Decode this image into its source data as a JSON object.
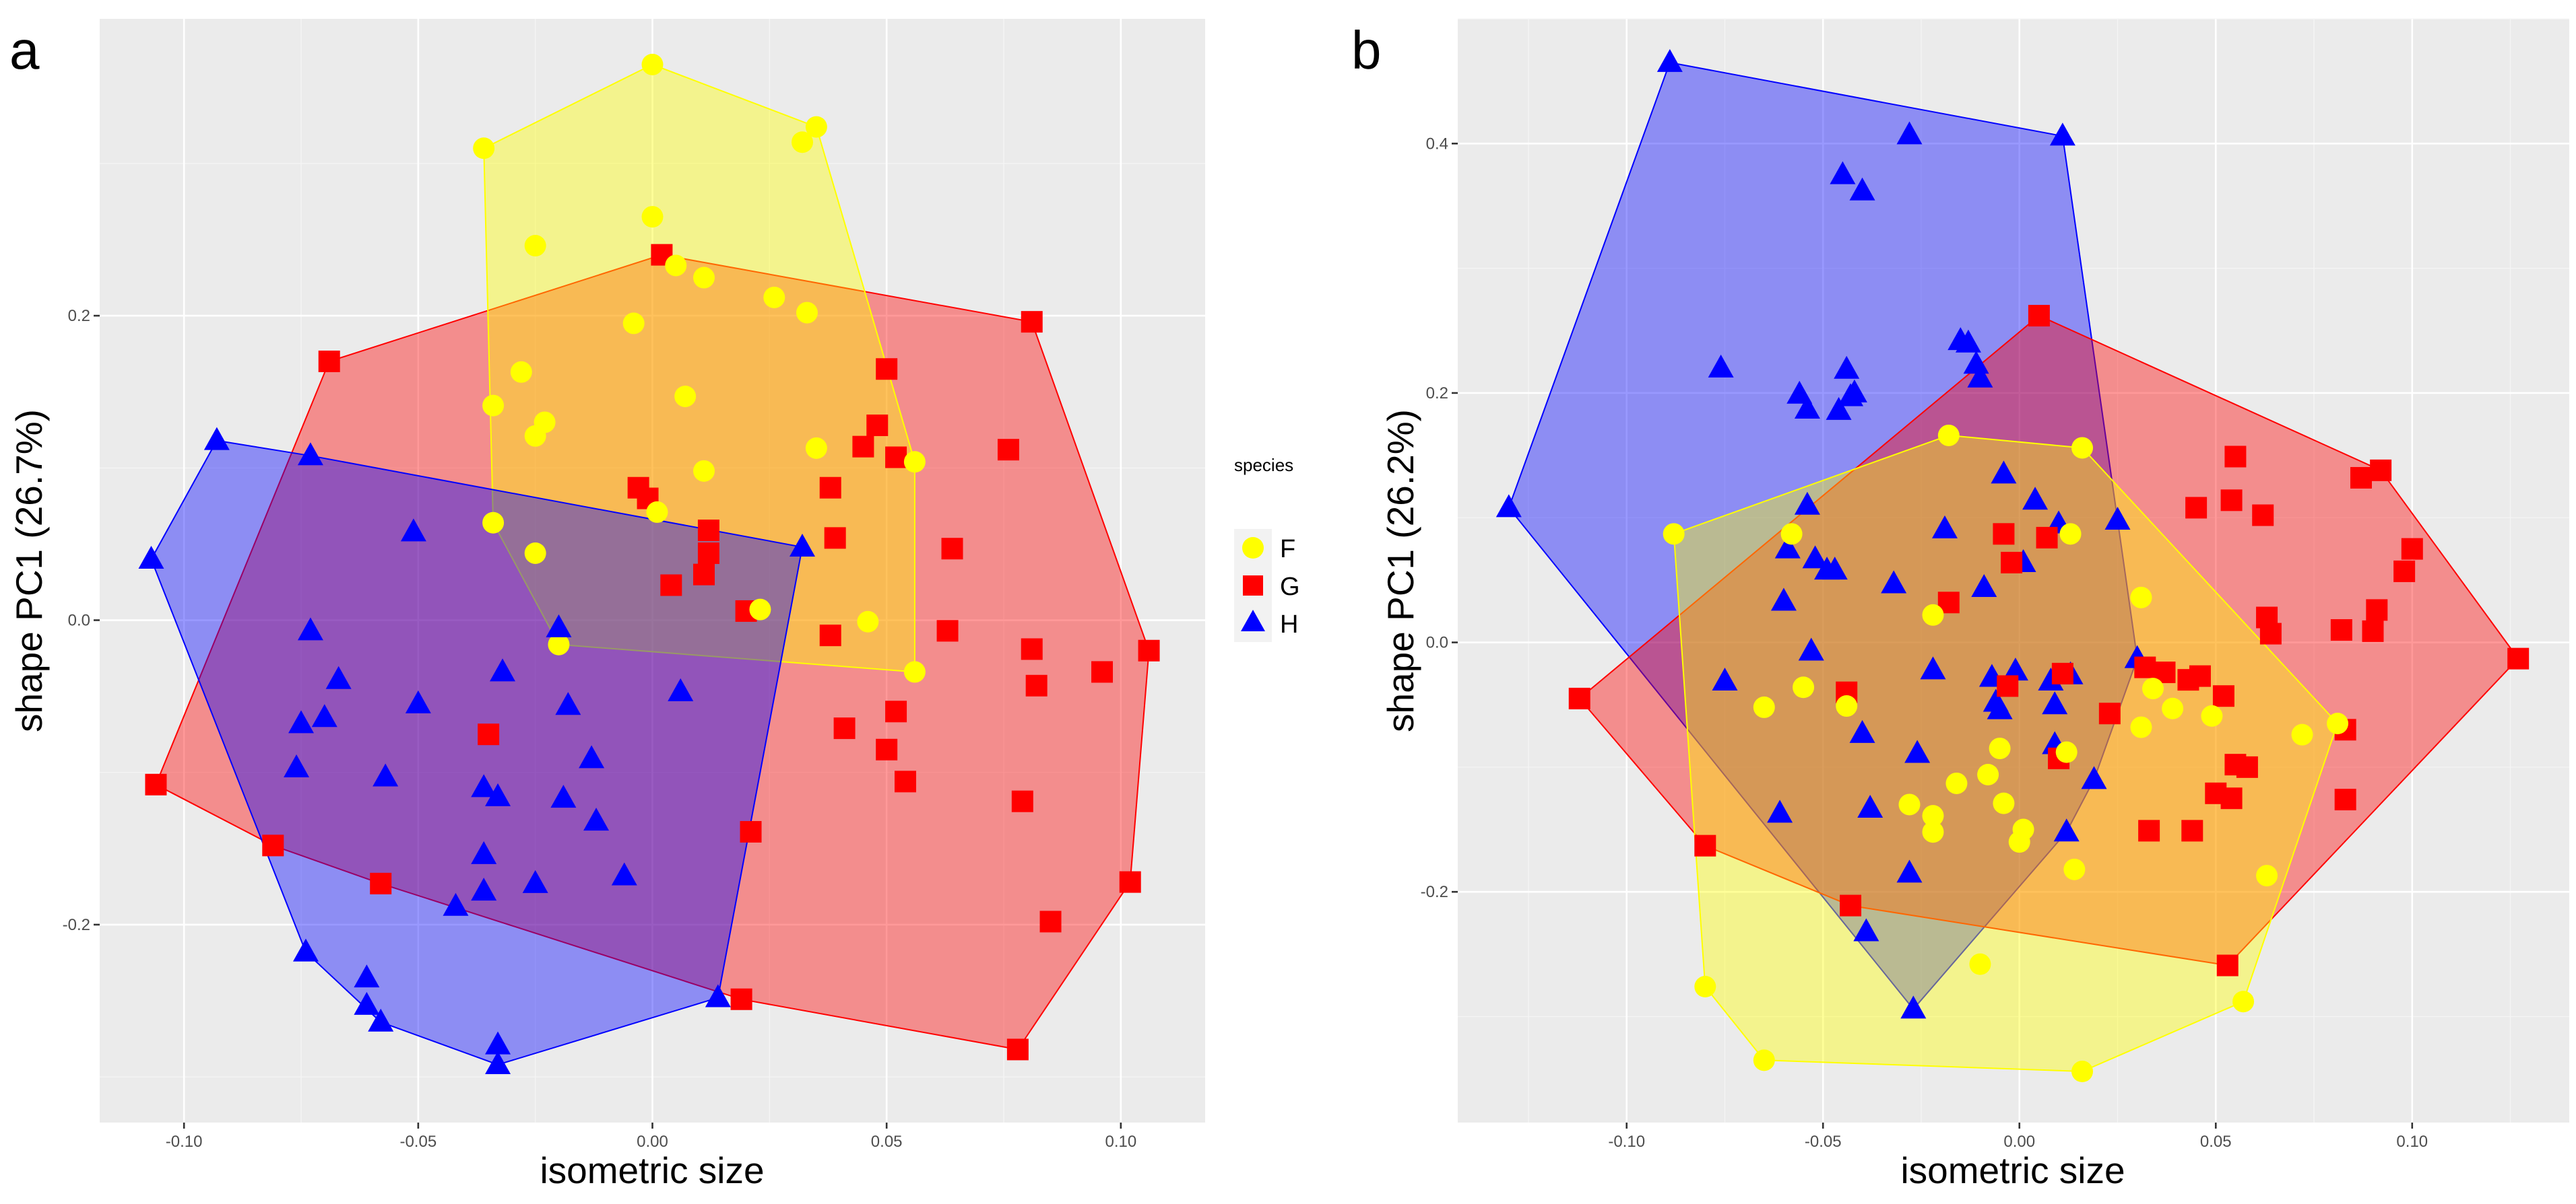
{
  "legend": {
    "title": "species",
    "items": [
      {
        "label": "F",
        "color": "#ffff00",
        "shape": "circle"
      },
      {
        "label": "G",
        "color": "#ff0000",
        "shape": "square"
      },
      {
        "label": "H",
        "color": "#0000ff",
        "shape": "triangle"
      }
    ]
  },
  "chart_data": [
    {
      "type": "scatter",
      "panel_label": "a",
      "xlabel": "isometric size",
      "ylabel": "shape PC1 (26.7%)",
      "xlim": [
        -0.118,
        0.118
      ],
      "ylim": [
        -0.33,
        0.395
      ],
      "x_ticks": [
        -0.1,
        -0.05,
        0.0,
        0.05,
        0.1
      ],
      "x_tick_labels": [
        "-0.10",
        "-0.05",
        "0.00",
        "0.05",
        "0.10"
      ],
      "y_ticks": [
        -0.2,
        0.0,
        0.2
      ],
      "y_tick_labels": [
        "-0.2",
        "0.0",
        "0.2"
      ],
      "hull_fill_opacity": 0.4,
      "series": [
        {
          "name": "G",
          "color": "#ff0000",
          "shape": "square",
          "points": [
            [
              -0.106,
              -0.108
            ],
            [
              -0.069,
              0.17
            ],
            [
              0.002,
              0.24
            ],
            [
              0.081,
              0.196
            ],
            [
              0.076,
              0.112
            ],
            [
              0.064,
              0.047
            ],
            [
              0.063,
              -0.007
            ],
            [
              0.081,
              -0.019
            ],
            [
              0.106,
              -0.02
            ],
            [
              0.096,
              -0.034
            ],
            [
              0.082,
              -0.043
            ],
            [
              0.079,
              -0.119
            ],
            [
              0.085,
              -0.198
            ],
            [
              0.102,
              -0.172
            ],
            [
              0.078,
              -0.282
            ],
            [
              0.019,
              -0.249
            ],
            [
              0.021,
              -0.139
            ],
            [
              -0.081,
              -0.148
            ],
            [
              -0.058,
              -0.173
            ],
            [
              -0.035,
              -0.075
            ],
            [
              0.004,
              0.023
            ],
            [
              0.011,
              0.03
            ],
            [
              0.012,
              0.044
            ],
            [
              0.012,
              0.059
            ],
            [
              -0.003,
              0.087
            ],
            [
              -0.001,
              0.08
            ],
            [
              0.02,
              0.006
            ],
            [
              0.038,
              0.087
            ],
            [
              0.039,
              0.054
            ],
            [
              0.045,
              0.114
            ],
            [
              0.048,
              0.128
            ],
            [
              0.052,
              0.107
            ],
            [
              0.05,
              0.165
            ],
            [
              0.038,
              -0.01
            ],
            [
              0.041,
              -0.071
            ],
            [
              0.05,
              -0.085
            ],
            [
              0.052,
              -0.06
            ],
            [
              0.054,
              -0.106
            ]
          ]
        },
        {
          "name": "F",
          "color": "#ffff00",
          "shape": "circle",
          "points": [
            [
              0.0,
              0.365
            ],
            [
              0.035,
              0.324
            ],
            [
              0.032,
              0.314
            ],
            [
              -0.036,
              0.31
            ],
            [
              0.0,
              0.265
            ],
            [
              -0.025,
              0.246
            ],
            [
              0.005,
              0.233
            ],
            [
              0.011,
              0.225
            ],
            [
              0.026,
              0.212
            ],
            [
              0.033,
              0.202
            ],
            [
              -0.004,
              0.195
            ],
            [
              -0.028,
              0.163
            ],
            [
              -0.034,
              0.141
            ],
            [
              -0.023,
              0.13
            ],
            [
              -0.025,
              0.121
            ],
            [
              0.007,
              0.147
            ],
            [
              0.035,
              0.113
            ],
            [
              0.056,
              0.104
            ],
            [
              0.011,
              0.098
            ],
            [
              0.001,
              0.071
            ],
            [
              -0.034,
              0.064
            ],
            [
              -0.025,
              0.044
            ],
            [
              0.023,
              0.007
            ],
            [
              0.046,
              -0.001
            ],
            [
              -0.02,
              -0.016
            ],
            [
              0.056,
              -0.034
            ]
          ]
        },
        {
          "name": "H",
          "color": "#0000ff",
          "shape": "triangle",
          "points": [
            [
              -0.107,
              0.04
            ],
            [
              -0.093,
              0.118
            ],
            [
              -0.073,
              0.108
            ],
            [
              -0.051,
              0.058
            ],
            [
              -0.073,
              -0.007
            ],
            [
              -0.067,
              -0.039
            ],
            [
              -0.075,
              -0.068
            ],
            [
              -0.07,
              -0.064
            ],
            [
              -0.076,
              -0.097
            ],
            [
              -0.057,
              -0.103
            ],
            [
              -0.05,
              -0.055
            ],
            [
              -0.036,
              -0.11
            ],
            [
              -0.033,
              -0.116
            ],
            [
              -0.036,
              -0.154
            ],
            [
              -0.036,
              -0.178
            ],
            [
              -0.042,
              -0.188
            ],
            [
              -0.032,
              -0.034
            ],
            [
              -0.02,
              -0.005
            ],
            [
              -0.025,
              -0.173
            ],
            [
              -0.019,
              -0.117
            ],
            [
              -0.018,
              -0.056
            ],
            [
              -0.013,
              -0.091
            ],
            [
              -0.012,
              -0.132
            ],
            [
              -0.006,
              -0.168
            ],
            [
              0.006,
              -0.047
            ],
            [
              0.032,
              0.048
            ],
            [
              -0.074,
              -0.218
            ],
            [
              -0.061,
              -0.235
            ],
            [
              -0.061,
              -0.253
            ],
            [
              -0.058,
              -0.264
            ],
            [
              -0.033,
              -0.279
            ],
            [
              -0.033,
              -0.292
            ],
            [
              0.014,
              -0.248
            ]
          ]
        }
      ]
    },
    {
      "type": "scatter",
      "panel_label": "b",
      "xlabel": "isometric size",
      "ylabel": "shape PC1 (26.2%)",
      "xlim": [
        -0.143,
        0.14
      ],
      "ylim": [
        -0.385,
        0.5
      ],
      "x_ticks": [
        -0.1,
        -0.05,
        0.0,
        0.05,
        0.1
      ],
      "x_tick_labels": [
        "-0.10",
        "-0.05",
        "0.00",
        "0.05",
        "0.10"
      ],
      "y_ticks": [
        -0.2,
        0.0,
        0.2,
        0.4
      ],
      "y_tick_labels": [
        "-0.2",
        "0.0",
        "0.2",
        "0.4"
      ],
      "hull_fill_opacity": 0.4,
      "series": [
        {
          "name": "H",
          "color": "#0000ff",
          "shape": "triangle",
          "points": [
            [
              -0.089,
              0.465
            ],
            [
              -0.028,
              0.407
            ],
            [
              0.011,
              0.406
            ],
            [
              -0.045,
              0.375
            ],
            [
              -0.04,
              0.362
            ],
            [
              -0.13,
              0.108
            ],
            [
              -0.076,
              0.22
            ],
            [
              -0.056,
              0.199
            ],
            [
              -0.054,
              0.187
            ],
            [
              -0.046,
              0.186
            ],
            [
              -0.044,
              0.219
            ],
            [
              -0.043,
              0.197
            ],
            [
              -0.042,
              0.2
            ],
            [
              -0.015,
              0.242
            ],
            [
              -0.013,
              0.24
            ],
            [
              -0.011,
              0.223
            ],
            [
              -0.01,
              0.212
            ],
            [
              -0.054,
              0.11
            ],
            [
              -0.059,
              0.075
            ],
            [
              -0.052,
              0.067
            ],
            [
              -0.049,
              0.058
            ],
            [
              -0.047,
              0.058
            ],
            [
              -0.06,
              0.033
            ],
            [
              -0.032,
              0.047
            ],
            [
              -0.019,
              0.091
            ],
            [
              -0.004,
              0.135
            ],
            [
              0.004,
              0.114
            ],
            [
              0.01,
              0.095
            ],
            [
              0.025,
              0.098
            ],
            [
              -0.053,
              -0.007
            ],
            [
              -0.075,
              -0.031
            ],
            [
              -0.022,
              -0.022
            ],
            [
              -0.009,
              0.044
            ],
            [
              0.001,
              0.064
            ],
            [
              0.03,
              -0.013
            ],
            [
              -0.04,
              -0.073
            ],
            [
              -0.026,
              -0.089
            ],
            [
              -0.007,
              -0.028
            ],
            [
              -0.006,
              -0.048
            ],
            [
              -0.005,
              -0.054
            ],
            [
              -0.001,
              -0.023
            ],
            [
              0.008,
              -0.031
            ],
            [
              0.009,
              -0.05
            ],
            [
              0.013,
              -0.026
            ],
            [
              0.009,
              -0.082
            ],
            [
              -0.038,
              -0.133
            ],
            [
              -0.028,
              -0.185
            ],
            [
              0.019,
              -0.11
            ],
            [
              0.012,
              -0.152
            ],
            [
              -0.061,
              -0.137
            ],
            [
              -0.039,
              -0.232
            ],
            [
              -0.027,
              -0.294
            ]
          ]
        },
        {
          "name": "G",
          "color": "#ff0000",
          "shape": "square",
          "points": [
            [
              0.005,
              0.262
            ],
            [
              -0.112,
              -0.045
            ],
            [
              -0.08,
              -0.163
            ],
            [
              -0.043,
              -0.211
            ],
            [
              0.053,
              -0.259
            ],
            [
              0.083,
              -0.126
            ],
            [
              0.083,
              -0.07
            ],
            [
              0.127,
              -0.013
            ],
            [
              0.1,
              0.075
            ],
            [
              0.098,
              0.057
            ],
            [
              0.092,
              0.138
            ],
            [
              0.087,
              0.132
            ],
            [
              0.082,
              0.01
            ],
            [
              0.09,
              0.009
            ],
            [
              0.091,
              0.026
            ],
            [
              0.063,
              0.02
            ],
            [
              0.064,
              0.007
            ],
            [
              0.062,
              0.102
            ],
            [
              0.055,
              0.149
            ],
            [
              0.054,
              0.114
            ],
            [
              0.045,
              0.108
            ],
            [
              0.032,
              -0.02
            ],
            [
              0.037,
              -0.024
            ],
            [
              0.043,
              -0.03
            ],
            [
              0.046,
              -0.027
            ],
            [
              0.052,
              -0.043
            ],
            [
              0.055,
              -0.098
            ],
            [
              0.058,
              -0.1
            ],
            [
              0.05,
              -0.121
            ],
            [
              0.054,
              -0.125
            ],
            [
              0.044,
              -0.151
            ],
            [
              0.033,
              -0.151
            ],
            [
              -0.004,
              0.087
            ],
            [
              0.007,
              0.084
            ],
            [
              -0.018,
              0.032
            ],
            [
              -0.002,
              0.064
            ],
            [
              0.011,
              -0.025
            ],
            [
              0.023,
              -0.057
            ],
            [
              0.01,
              -0.093
            ],
            [
              -0.003,
              -0.035
            ],
            [
              -0.044,
              -0.04
            ]
          ]
        },
        {
          "name": "F",
          "color": "#ffff00",
          "shape": "circle",
          "points": [
            [
              -0.018,
              0.166
            ],
            [
              0.016,
              0.156
            ],
            [
              -0.088,
              0.087
            ],
            [
              -0.058,
              0.087
            ],
            [
              0.013,
              0.087
            ],
            [
              -0.022,
              0.022
            ],
            [
              0.031,
              0.036
            ],
            [
              -0.065,
              -0.052
            ],
            [
              -0.055,
              -0.036
            ],
            [
              -0.044,
              -0.051
            ],
            [
              -0.016,
              -0.113
            ],
            [
              -0.028,
              -0.13
            ],
            [
              -0.022,
              -0.139
            ],
            [
              -0.022,
              -0.152
            ],
            [
              -0.008,
              -0.106
            ],
            [
              -0.004,
              -0.129
            ],
            [
              -0.005,
              -0.085
            ],
            [
              0.001,
              -0.15
            ],
            [
              0.0,
              -0.16
            ],
            [
              0.012,
              -0.088
            ],
            [
              0.031,
              -0.068
            ],
            [
              0.034,
              -0.037
            ],
            [
              0.039,
              -0.053
            ],
            [
              0.049,
              -0.059
            ],
            [
              0.072,
              -0.074
            ],
            [
              0.081,
              -0.065
            ],
            [
              0.063,
              -0.187
            ],
            [
              0.057,
              -0.288
            ],
            [
              0.014,
              -0.182
            ],
            [
              0.016,
              -0.344
            ],
            [
              -0.01,
              -0.258
            ],
            [
              -0.065,
              -0.335
            ],
            [
              -0.08,
              -0.276
            ]
          ]
        }
      ]
    }
  ]
}
